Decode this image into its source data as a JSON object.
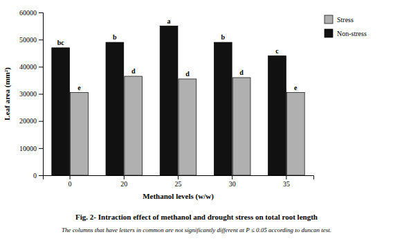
{
  "chart_data": {
    "type": "bar",
    "title": "Fig. 2- Intraction effect of methanol and drought stress on total root length",
    "subtitle": "The columns that have letters in common are not significantly different at P ≤ 0.05 according to duncan test.",
    "x_label": "Methanol levels (w/w)",
    "y_label": "Leaf area  (mm²)",
    "categories": [
      "0",
      "20",
      "25",
      "30",
      "35"
    ],
    "series": [
      {
        "name": "Non-stress",
        "color": "#111111",
        "values": [
          47000,
          49000,
          55000,
          49000,
          44000
        ],
        "labels": [
          "bc",
          "b",
          "a",
          "b",
          "c"
        ]
      },
      {
        "name": "Stress",
        "color": "#b0b0b0",
        "values": [
          30500,
          36500,
          35500,
          36000,
          30500
        ],
        "labels": [
          "e",
          "d",
          "d",
          "d",
          "e"
        ]
      }
    ],
    "ylim": [
      0,
      60000
    ],
    "yticks": [
      0,
      10000,
      20000,
      30000,
      40000,
      50000,
      60000
    ],
    "grid": false,
    "legend": "right"
  }
}
